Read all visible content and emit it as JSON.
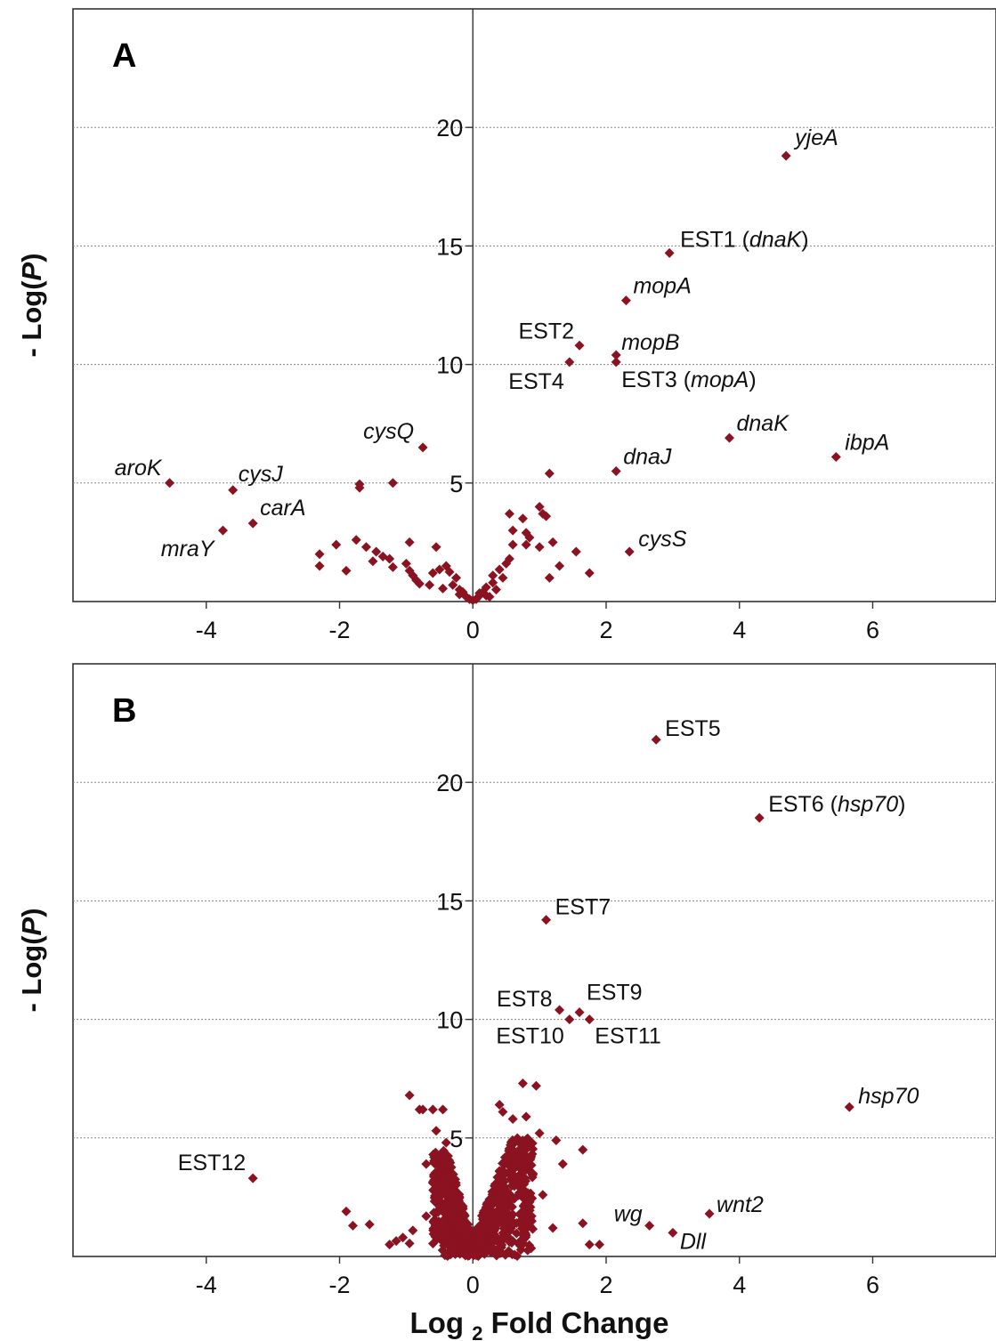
{
  "chart_data": [
    {
      "type": "scatter",
      "panel_label": "A",
      "ylabel": "- Log(P)",
      "xlabel": "",
      "xticks": [
        -4,
        -2,
        0,
        2,
        4,
        6
      ],
      "yticks": [
        5,
        10,
        15,
        20
      ],
      "xlim": [
        -6.0,
        7.85
      ],
      "ylim": [
        0,
        25
      ],
      "grid": "horizontal dotted",
      "marker_color": "#8b1220",
      "labels": [
        {
          "text": "yjeA",
          "italic": true,
          "x": 4.7,
          "y": 18.8
        },
        {
          "text": "EST1 (dnaK)",
          "italic": false,
          "x": 2.95,
          "y": 14.7
        },
        {
          "text": "mopA",
          "italic": true,
          "x": 2.3,
          "y": 12.7
        },
        {
          "text": "EST2",
          "italic": false,
          "x": 1.6,
          "y": 10.8
        },
        {
          "text": "mopB",
          "italic": true,
          "x": 2.15,
          "y": 10.4
        },
        {
          "text": "EST4",
          "italic": false,
          "x": 1.45,
          "y": 10.1
        },
        {
          "text": "EST3 (mopA)",
          "italic": false,
          "x": 2.15,
          "y": 10.1
        },
        {
          "text": "cysQ",
          "italic": true,
          "x": -0.75,
          "y": 6.5
        },
        {
          "text": "dnaK",
          "italic": true,
          "x": 3.85,
          "y": 6.9
        },
        {
          "text": "ibpA",
          "italic": true,
          "x": 5.45,
          "y": 6.1
        },
        {
          "text": "aroK",
          "italic": true,
          "x": -4.55,
          "y": 5.0
        },
        {
          "text": "cysJ",
          "italic": true,
          "x": -3.6,
          "y": 4.7
        },
        {
          "text": "dnaJ",
          "italic": true,
          "x": 2.15,
          "y": 5.5
        },
        {
          "text": "carA",
          "italic": true,
          "x": -3.3,
          "y": 3.3
        },
        {
          "text": "mraY",
          "italic": true,
          "x": -3.75,
          "y": 3.0
        },
        {
          "text": "cysS",
          "italic": true,
          "x": 2.35,
          "y": 2.1
        }
      ],
      "points": [
        [
          4.7,
          18.8
        ],
        [
          2.95,
          14.7
        ],
        [
          2.3,
          12.7
        ],
        [
          1.6,
          10.8
        ],
        [
          2.15,
          10.4
        ],
        [
          1.45,
          10.1
        ],
        [
          2.15,
          10.1
        ],
        [
          -0.75,
          6.5
        ],
        [
          3.85,
          6.9
        ],
        [
          5.45,
          6.1
        ],
        [
          -4.55,
          5.0
        ],
        [
          -3.6,
          4.7
        ],
        [
          2.15,
          5.5
        ],
        [
          -3.3,
          3.3
        ],
        [
          -3.75,
          3.0
        ],
        [
          2.35,
          2.1
        ],
        [
          -1.7,
          4.8
        ],
        [
          -1.7,
          4.95
        ],
        [
          -1.2,
          5.0
        ],
        [
          1.15,
          5.4
        ],
        [
          -2.3,
          1.5
        ],
        [
          -2.3,
          2.0
        ],
        [
          -2.05,
          2.4
        ],
        [
          -1.9,
          1.3
        ],
        [
          -1.75,
          2.6
        ],
        [
          -1.6,
          2.3
        ],
        [
          -1.5,
          1.7
        ],
        [
          -1.45,
          2.1
        ],
        [
          -1.35,
          1.9
        ],
        [
          -1.25,
          1.8
        ],
        [
          -1.2,
          1.45
        ],
        [
          -1.0,
          1.6
        ],
        [
          -0.95,
          1.3
        ],
        [
          -0.9,
          1.1
        ],
        [
          -0.85,
          0.9
        ],
        [
          -0.95,
          2.5
        ],
        [
          -0.8,
          0.75
        ],
        [
          -0.6,
          1.2
        ],
        [
          -0.55,
          2.3
        ],
        [
          -0.5,
          1.35
        ],
        [
          -0.4,
          1.5
        ],
        [
          -0.35,
          1.25
        ],
        [
          -0.3,
          0.7
        ],
        [
          -0.25,
          1.0
        ],
        [
          -0.2,
          0.5
        ],
        [
          -0.15,
          0.4
        ],
        [
          -0.1,
          0.2
        ],
        [
          -0.05,
          0.1
        ],
        [
          0.0,
          0.05
        ],
        [
          -0.65,
          0.7
        ],
        [
          -0.45,
          0.55
        ],
        [
          0.05,
          0.1
        ],
        [
          0.1,
          0.25
        ],
        [
          0.15,
          0.4
        ],
        [
          0.2,
          0.6
        ],
        [
          0.25,
          0.2
        ],
        [
          0.3,
          0.8
        ],
        [
          0.3,
          1.1
        ],
        [
          0.35,
          0.5
        ],
        [
          0.4,
          1.35
        ],
        [
          0.45,
          1.0
        ],
        [
          0.5,
          1.6
        ],
        [
          0.55,
          1.8
        ],
        [
          0.6,
          2.4
        ],
        [
          0.55,
          3.7
        ],
        [
          0.6,
          3.0
        ],
        [
          0.75,
          3.5
        ],
        [
          0.8,
          2.9
        ],
        [
          0.8,
          2.4
        ],
        [
          0.85,
          2.7
        ],
        [
          1.0,
          2.3
        ],
        [
          1.0,
          4.0
        ],
        [
          1.05,
          3.7
        ],
        [
          1.1,
          3.6
        ],
        [
          1.2,
          2.5
        ],
        [
          1.15,
          1.0
        ],
        [
          1.3,
          1.5
        ],
        [
          1.55,
          2.1
        ],
        [
          1.75,
          1.2
        ],
        [
          0.2,
          0.25
        ],
        [
          0.1,
          0.35
        ],
        [
          -0.2,
          0.3
        ]
      ]
    },
    {
      "type": "scatter",
      "panel_label": "B",
      "ylabel": "- Log(P)",
      "xlabel": "Log 2 Fold Change",
      "xticks": [
        -4,
        -2,
        0,
        2,
        4,
        6
      ],
      "yticks": [
        5,
        10,
        15,
        20
      ],
      "xlim": [
        -6.0,
        7.85
      ],
      "ylim": [
        0,
        25
      ],
      "grid": "horizontal dotted",
      "marker_color": "#8b1220",
      "labels": [
        {
          "text": "EST5",
          "italic": false,
          "x": 2.75,
          "y": 21.8
        },
        {
          "text": "EST6 (hsp70)",
          "italic": false,
          "x": 4.3,
          "y": 18.5
        },
        {
          "text": "EST7",
          "italic": false,
          "x": 1.1,
          "y": 14.2
        },
        {
          "text": "EST8",
          "italic": false,
          "x": 1.3,
          "y": 10.4
        },
        {
          "text": "EST9",
          "italic": false,
          "x": 1.6,
          "y": 10.3
        },
        {
          "text": "EST10",
          "italic": false,
          "x": 1.45,
          "y": 10.0
        },
        {
          "text": "EST11",
          "italic": false,
          "x": 1.75,
          "y": 10.0
        },
        {
          "text": "hsp70",
          "italic": true,
          "x": 5.65,
          "y": 6.3
        },
        {
          "text": "EST12",
          "italic": false,
          "x": -3.3,
          "y": 3.3
        },
        {
          "text": "wnt2",
          "italic": true,
          "x": 3.55,
          "y": 1.8
        },
        {
          "text": "wg",
          "italic": true,
          "x": 2.65,
          "y": 1.3
        },
        {
          "text": "Dll",
          "italic": true,
          "x": 3.0,
          "y": 1.0
        }
      ],
      "points": [
        [
          2.75,
          21.8
        ],
        [
          4.3,
          18.5
        ],
        [
          1.1,
          14.2
        ],
        [
          1.3,
          10.4
        ],
        [
          1.6,
          10.3
        ],
        [
          1.45,
          10.0
        ],
        [
          1.75,
          10.0
        ],
        [
          5.65,
          6.3
        ],
        [
          -3.3,
          3.3
        ],
        [
          3.55,
          1.8
        ],
        [
          2.65,
          1.3
        ],
        [
          3.0,
          1.0
        ],
        [
          -1.9,
          1.9
        ],
        [
          -1.8,
          1.3
        ],
        [
          -1.55,
          1.35
        ],
        [
          -1.25,
          0.5
        ],
        [
          -1.15,
          0.65
        ],
        [
          -1.05,
          0.8
        ],
        [
          -0.95,
          0.55
        ],
        [
          -0.95,
          6.8
        ],
        [
          -0.8,
          6.2
        ],
        [
          -0.75,
          6.2
        ],
        [
          -0.6,
          6.2
        ],
        [
          -0.45,
          6.2
        ],
        [
          -0.55,
          5.3
        ],
        [
          -0.4,
          4.8
        ],
        [
          -0.7,
          3.9
        ],
        [
          -0.6,
          3.1
        ],
        [
          -0.55,
          2.5
        ],
        [
          -0.9,
          1.1
        ],
        [
          -0.7,
          1.7
        ],
        [
          0.75,
          7.3
        ],
        [
          0.95,
          7.2
        ],
        [
          0.4,
          6.4
        ],
        [
          0.45,
          6.1
        ],
        [
          0.6,
          5.8
        ],
        [
          0.8,
          5.9
        ],
        [
          1.0,
          5.2
        ],
        [
          1.25,
          4.9
        ],
        [
          1.65,
          4.5
        ],
        [
          1.35,
          3.9
        ],
        [
          0.9,
          3.5
        ],
        [
          1.05,
          2.6
        ],
        [
          1.65,
          1.4
        ],
        [
          1.75,
          0.5
        ],
        [
          1.9,
          0.5
        ],
        [
          1.2,
          1.2
        ],
        [
          0.05,
          0.05
        ],
        [
          -0.05,
          0.05
        ]
      ],
      "dense_clusters": [
        {
          "x_from": -0.6,
          "x_to": 0.0,
          "y_top": 4.5,
          "count": 420
        },
        {
          "x_from": 0.0,
          "x_to": 0.9,
          "y_top": 5.0,
          "count": 460
        }
      ]
    }
  ]
}
